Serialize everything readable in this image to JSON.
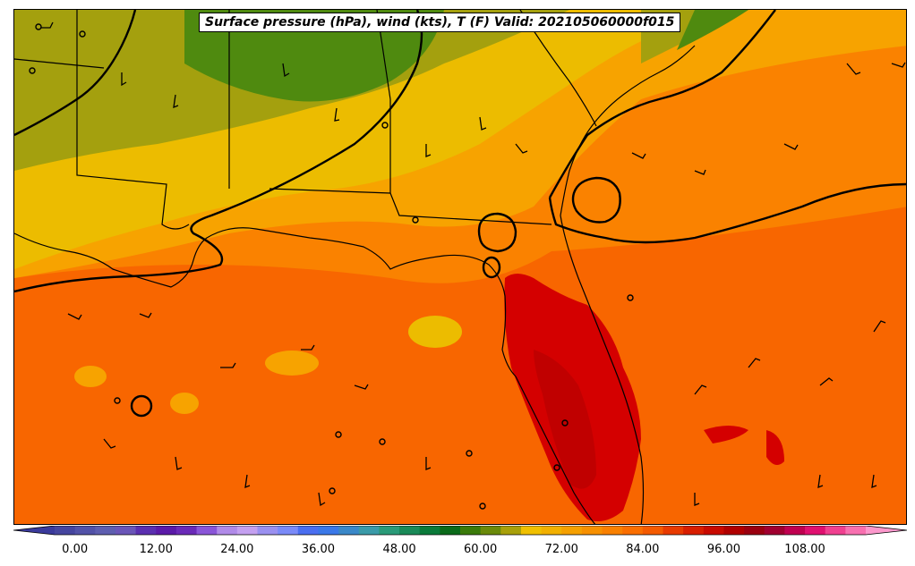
{
  "title": "Surface pressure (hPa), wind (kts), T (F) Valid: 202105060000f015",
  "colorbar": {
    "min": -6,
    "max": 120,
    "step": 3,
    "tick_labels": [
      "0.00",
      "12.00",
      "24.00",
      "36.00",
      "48.00",
      "60.00",
      "72.00",
      "84.00",
      "96.00",
      "108.00"
    ],
    "colors": [
      "#3a3a9c",
      "#45459f",
      "#5252a8",
      "#5e5eb0",
      "#6a55b8",
      "#5a2fb0",
      "#5a1aa8",
      "#6a2ab8",
      "#8a55d8",
      "#b08ae8",
      "#c4a0f0",
      "#9a90f0",
      "#7a8af8",
      "#4a6ef0",
      "#3a78e8",
      "#3a88c8",
      "#3a9aa8",
      "#2a9a78",
      "#1a8a58",
      "#0a7a3a",
      "#0a6a1a",
      "#3a7a0a",
      "#6a8a0a",
      "#a8a00a",
      "#f0c000",
      "#f2b000",
      "#f5a000",
      "#f79000",
      "#f98000",
      "#fa6e00",
      "#f45a00",
      "#e83a00",
      "#d81e00",
      "#c80a00",
      "#b00000",
      "#9a0010",
      "#a00030",
      "#c00050",
      "#e01070",
      "#f04090",
      "#f870b0",
      "#fc98cc"
    ]
  },
  "map_layers": {
    "temperature_fill_colors": {
      "cool_green": "#4f8a0f",
      "olive": "#a4a00e",
      "yellow": "#ecbc00",
      "light_orange": "#f7a300",
      "orange": "#fa8200",
      "dark_orange": "#f86600",
      "red_orange": "#f45a00",
      "red": "#d40000",
      "dark_red": "#c00000"
    },
    "isobar_color": "#000000",
    "wind_barb_color": "#000000"
  }
}
